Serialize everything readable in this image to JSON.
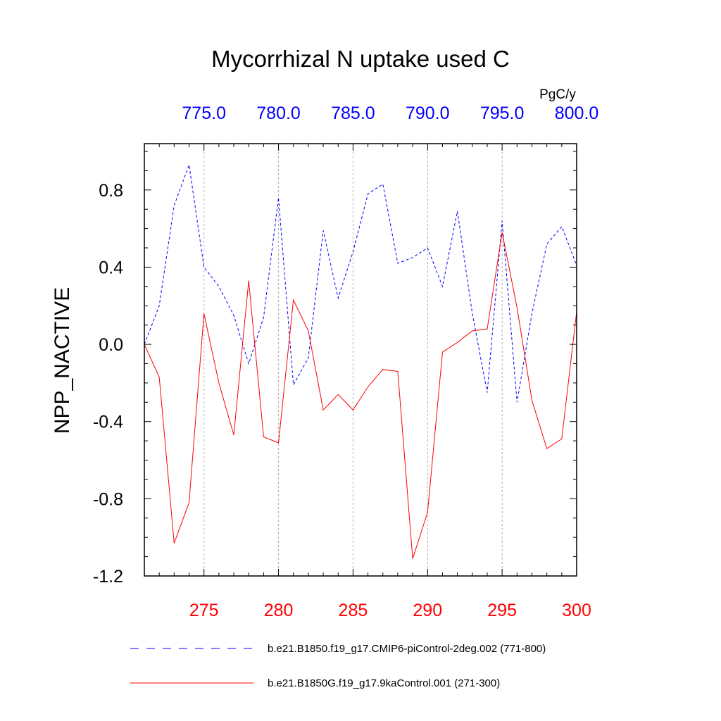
{
  "chart_data": {
    "type": "line",
    "title": "Mycorrhizal N uptake used C",
    "units": "PgC/y",
    "ylabel": "NPP_NACTIVE",
    "ylim": [
      -1.2,
      1.04
    ],
    "y_ticks": [
      -1.2,
      -0.8,
      -0.4,
      0.0,
      0.4,
      0.8
    ],
    "y_tick_labels": [
      "-1.2",
      "-0.8",
      "-0.4",
      "0.0",
      "0.4",
      "0.8"
    ],
    "bottom_axis": {
      "range": [
        271,
        300
      ],
      "ticks": [
        275,
        280,
        285,
        290,
        295,
        300
      ],
      "tick_labels": [
        "275",
        "280",
        "285",
        "290",
        "295",
        "300"
      ],
      "color": "#ff0000"
    },
    "top_axis": {
      "range": [
        771,
        800
      ],
      "ticks": [
        775,
        780,
        785,
        790,
        795,
        800
      ],
      "tick_labels": [
        "775.0",
        "780.0",
        "785.0",
        "790.0",
        "795.0",
        "800.0"
      ],
      "color": "#0000ff"
    },
    "series": [
      {
        "name": "b.e21.B1850.f19_g17.CMIP6-piControl-2deg.002 (771-800)",
        "axis": "top",
        "color": "#0000ff",
        "dash": "dashed",
        "x": [
          771,
          772,
          773,
          774,
          775,
          776,
          777,
          778,
          779,
          780,
          781,
          782,
          783,
          784,
          785,
          786,
          787,
          788,
          789,
          790,
          791,
          792,
          793,
          794,
          795,
          796,
          797,
          798,
          799,
          800
        ],
        "values": [
          0.0,
          0.2,
          0.72,
          0.93,
          0.4,
          0.3,
          0.15,
          -0.1,
          0.14,
          0.76,
          -0.21,
          -0.07,
          0.59,
          0.24,
          0.48,
          0.78,
          0.83,
          0.42,
          0.45,
          0.5,
          0.3,
          0.69,
          0.16,
          -0.25,
          0.64,
          -0.3,
          0.16,
          0.52,
          0.61,
          0.41
        ]
      },
      {
        "name": "b.e21.B1850G.f19_g17.9kaControl.001 (271-300)",
        "axis": "bottom",
        "color": "#ff0000",
        "dash": "solid",
        "x": [
          271,
          272,
          273,
          274,
          275,
          276,
          277,
          278,
          279,
          280,
          281,
          282,
          283,
          284,
          285,
          286,
          287,
          288,
          289,
          290,
          291,
          292,
          293,
          294,
          295,
          296,
          297,
          298,
          299,
          300
        ],
        "values": [
          0.0,
          -0.17,
          -1.03,
          -0.82,
          0.16,
          -0.2,
          -0.47,
          0.33,
          -0.48,
          -0.51,
          0.23,
          0.07,
          -0.34,
          -0.26,
          -0.34,
          -0.22,
          -0.13,
          -0.14,
          -1.11,
          -0.87,
          -0.04,
          0.01,
          0.07,
          0.08,
          0.58,
          0.19,
          -0.29,
          -0.54,
          -0.49,
          0.17
        ]
      }
    ]
  }
}
